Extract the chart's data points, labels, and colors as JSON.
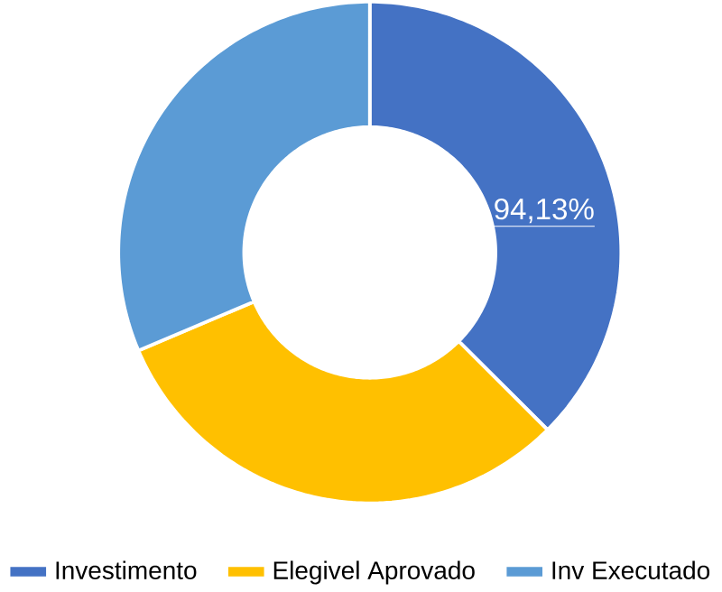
{
  "chart_data": {
    "type": "donut",
    "categories": [
      "Investimento",
      "Elegivel Aprovado",
      "Inv Executado"
    ],
    "values": [
      37.5,
      31.1,
      31.4
    ],
    "colors": [
      "#4472c4",
      "#ffc000",
      "#5b9bd5"
    ],
    "annotations": [
      "94,13%"
    ],
    "legend": "bottom"
  }
}
